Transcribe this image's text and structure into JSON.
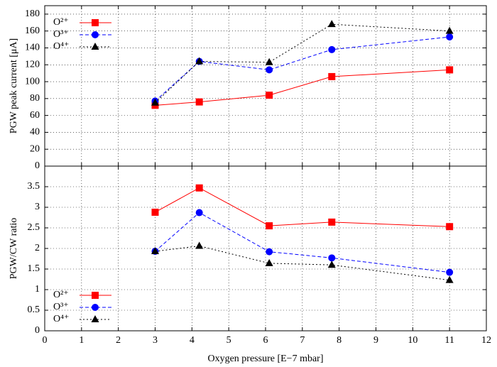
{
  "chart_data": [
    {
      "type": "line",
      "ylabel": "PGW peak current [μA]",
      "x": [
        3,
        4.2,
        6.1,
        7.8,
        11
      ],
      "xlim": [
        0,
        12
      ],
      "xticks": [
        0,
        1,
        2,
        3,
        4,
        5,
        6,
        7,
        8,
        9,
        10,
        11,
        12
      ],
      "ylim": [
        0,
        190
      ],
      "yticks": [
        0,
        20,
        40,
        60,
        80,
        100,
        120,
        140,
        160,
        180
      ],
      "grid": true,
      "legend": "upper left",
      "series": [
        {
          "name": "O²⁺",
          "color": "#ff0000",
          "marker": "square",
          "linestyle": "solid",
          "values": [
            72,
            76,
            84,
            106,
            114
          ]
        },
        {
          "name": "O³⁺",
          "color": "#0000ff",
          "marker": "circle",
          "linestyle": "dashed",
          "values": [
            77,
            124,
            114,
            138,
            153
          ]
        },
        {
          "name": "O⁴⁺",
          "color": "#000000",
          "marker": "triangle",
          "linestyle": "dotted",
          "values": [
            75,
            124,
            123,
            168,
            160
          ]
        }
      ]
    },
    {
      "type": "line",
      "xlabel": "Oxygen pressure [E−7 mbar]",
      "ylabel": "PGW/CW ratio",
      "x": [
        3,
        4.2,
        6.1,
        7.8,
        11
      ],
      "xlim": [
        0,
        12
      ],
      "xticks": [
        0,
        1,
        2,
        3,
        4,
        5,
        6,
        7,
        8,
        9,
        10,
        11,
        12
      ],
      "ylim": [
        0,
        4
      ],
      "yticks": [
        0,
        0.5,
        1,
        1.5,
        2,
        2.5,
        3,
        3.5
      ],
      "grid": true,
      "legend": "lower left",
      "series": [
        {
          "name": "O²⁺",
          "color": "#ff0000",
          "marker": "square",
          "linestyle": "solid",
          "values": [
            2.88,
            3.47,
            2.55,
            2.64,
            2.53
          ]
        },
        {
          "name": "O³⁺",
          "color": "#0000ff",
          "marker": "circle",
          "linestyle": "dashed",
          "values": [
            1.93,
            2.87,
            1.92,
            1.77,
            1.42
          ]
        },
        {
          "name": "O⁴⁺",
          "color": "#000000",
          "marker": "triangle",
          "linestyle": "dotted",
          "values": [
            1.93,
            2.06,
            1.64,
            1.6,
            1.23
          ]
        }
      ]
    }
  ]
}
